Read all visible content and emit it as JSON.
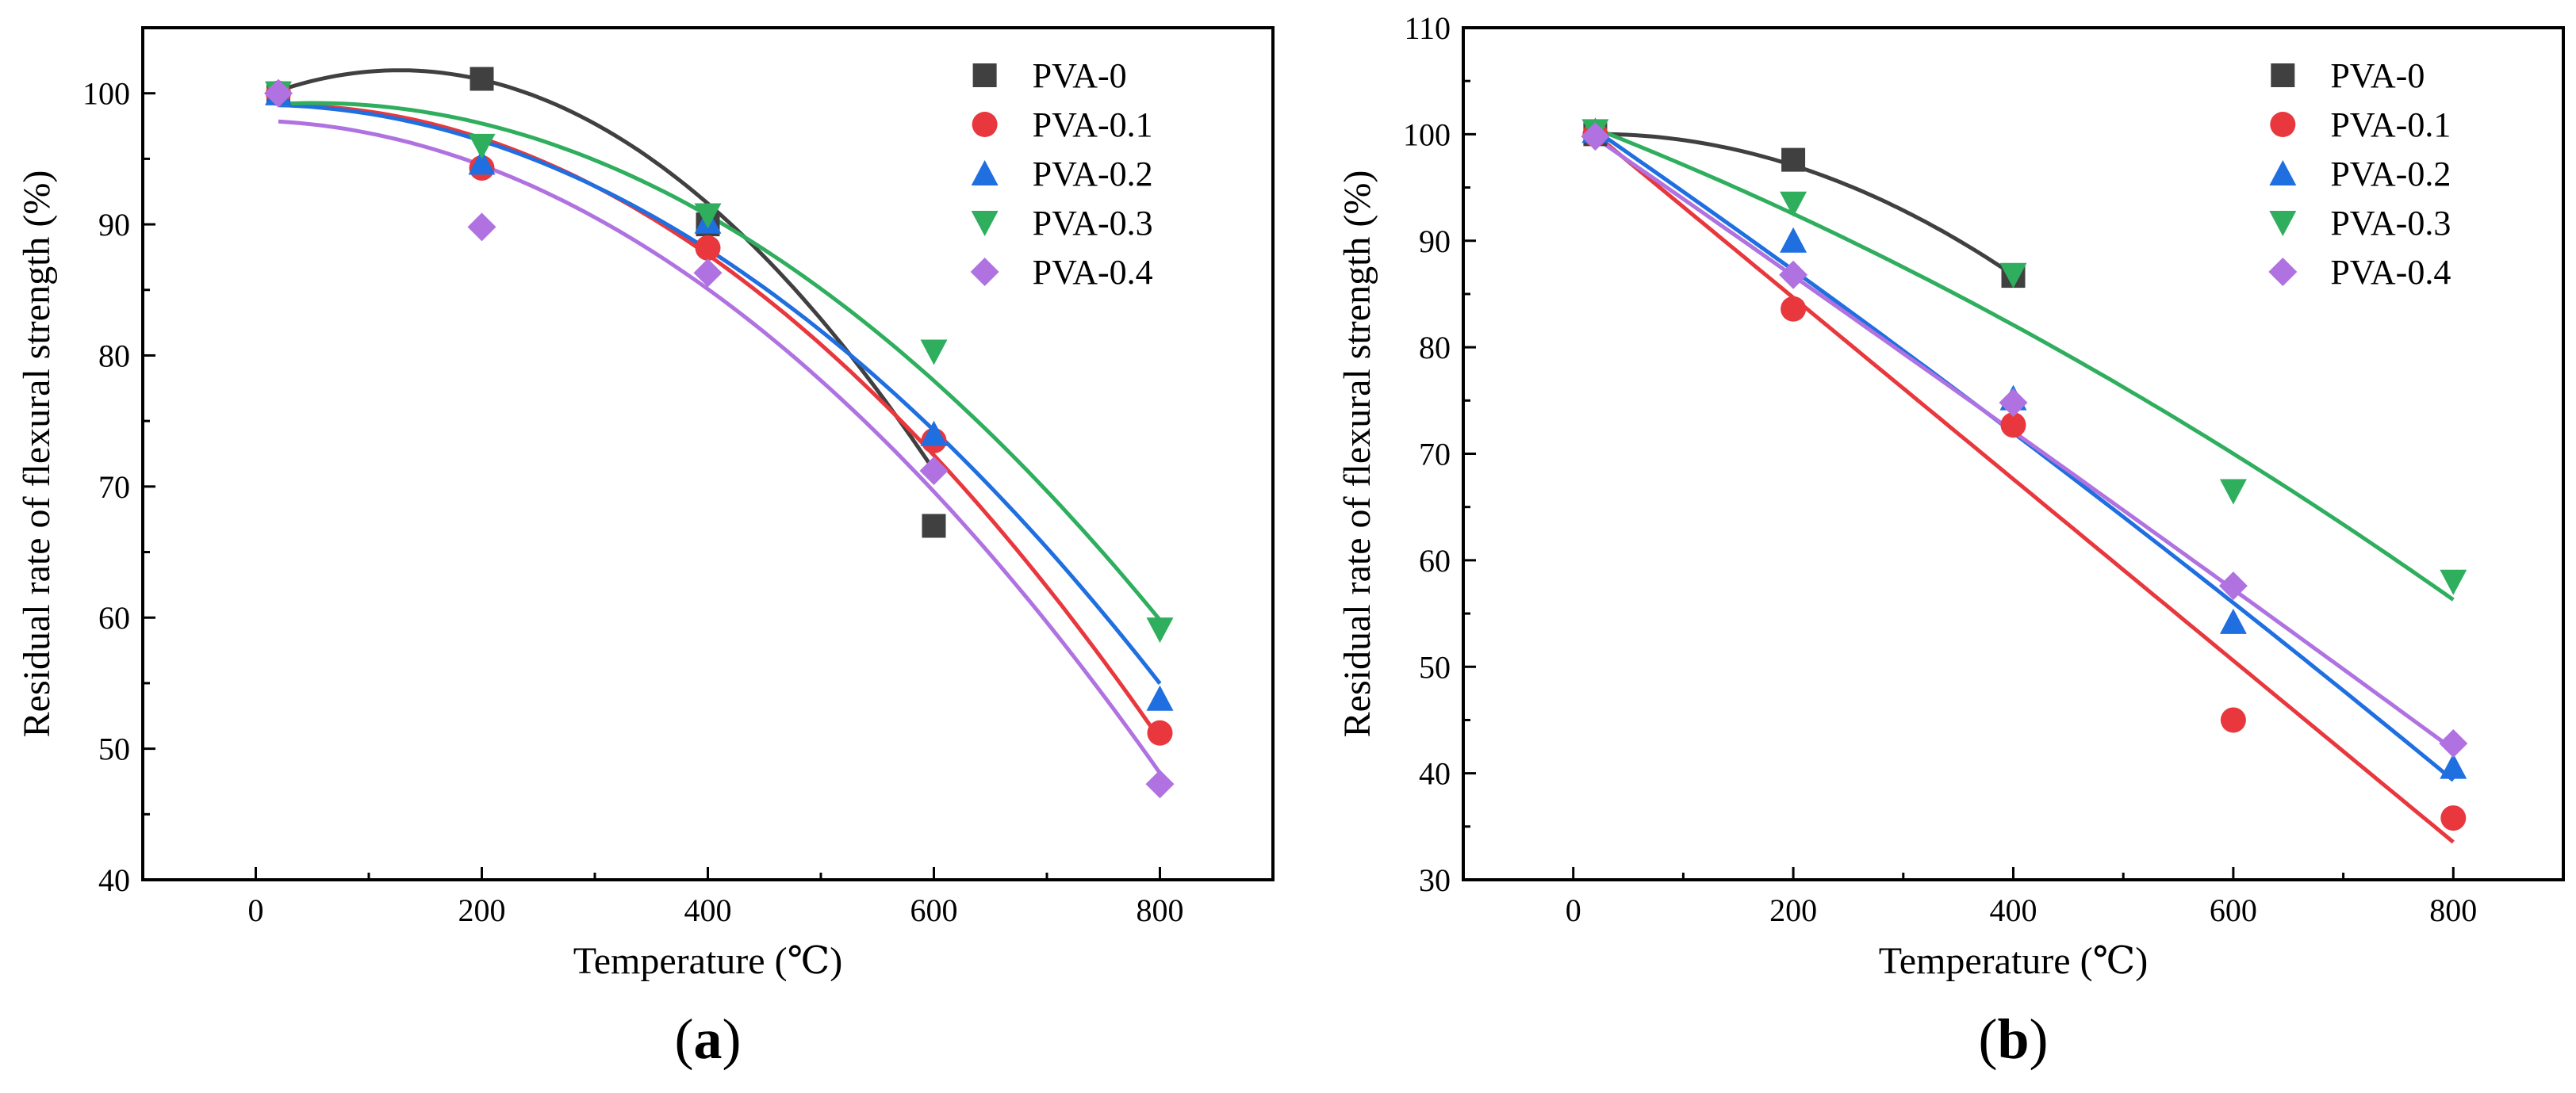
{
  "colors": {
    "PVA-0": "#404040",
    "PVA-0.1": "#e8383d",
    "PVA-0.2": "#1f6fe0",
    "PVA-0.3": "#2fae5e",
    "PVA-0.4": "#b072e0"
  },
  "chart_data": [
    {
      "type": "scatter",
      "panel_label": "a",
      "xlabel": "Temperature (℃)",
      "ylabel": "Residual rate of flexural strength (%)",
      "xlim": [
        -100,
        900
      ],
      "ylim": [
        40,
        105
      ],
      "x_ticks": [
        0,
        200,
        400,
        600,
        800
      ],
      "y_ticks": [
        40,
        50,
        60,
        70,
        80,
        90,
        100
      ],
      "legend_position": "top-right",
      "series": [
        {
          "name": "PVA-0",
          "marker": "square",
          "x": [
            20,
            200,
            400,
            600
          ],
          "y": [
            100,
            101.1,
            90,
            67
          ],
          "fit": [
            99.55,
            0.0347,
            -0.0001365
          ],
          "fit_range": [
            20,
            600
          ]
        },
        {
          "name": "PVA-0.1",
          "marker": "circle",
          "x": [
            20,
            200,
            400,
            600,
            800
          ],
          "y": [
            100,
            94.3,
            88.2,
            73.5,
            51.2
          ],
          "fit": [
            99.05,
            0.00357,
            -8e-05
          ],
          "fit_range": [
            20,
            800
          ]
        },
        {
          "name": "PVA-0.2",
          "marker": "triangle-up",
          "x": [
            20,
            200,
            400,
            600,
            800
          ],
          "y": [
            100,
            94.7,
            90.2,
            74,
            53.8
          ],
          "fit": [
            99.13,
            0.0,
            -6.9e-05
          ],
          "fit_range": [
            20,
            800
          ]
        },
        {
          "name": "PVA-0.3",
          "marker": "triangle-down",
          "x": [
            20,
            200,
            400,
            600,
            800
          ],
          "y": [
            100,
            96,
            90.7,
            80.3,
            59.1
          ],
          "fit": [
            99.07,
            0.00718,
            -7.03e-05
          ],
          "fit_range": [
            20,
            800
          ]
        },
        {
          "name": "PVA-0.4",
          "marker": "diamond",
          "x": [
            20,
            200,
            400,
            600,
            800
          ],
          "y": [
            100,
            89.8,
            86.3,
            71.2,
            47.3
          ],
          "fit": [
            97.92,
            -0.00206,
            -7.52e-05
          ],
          "fit_range": [
            20,
            800
          ]
        }
      ]
    },
    {
      "type": "scatter",
      "panel_label": "b",
      "xlabel": "Temperature (℃)",
      "ylabel": "Residual rate of flexural strength (%)",
      "xlim": [
        -100,
        900
      ],
      "ylim": [
        30,
        110
      ],
      "x_ticks": [
        0,
        200,
        400,
        600,
        800
      ],
      "y_ticks": [
        30,
        40,
        50,
        60,
        70,
        80,
        90,
        100,
        110
      ],
      "legend_position": "top-right",
      "series": [
        {
          "name": "PVA-0",
          "marker": "square",
          "x": [
            20,
            200,
            400
          ],
          "y": [
            100,
            97.6,
            86.7
          ],
          "fit": [
            99.98,
            0.00392,
            -9.23e-05
          ],
          "fit_range": [
            20,
            400
          ]
        },
        {
          "name": "PVA-0.1",
          "marker": "circle",
          "x": [
            20,
            200,
            400,
            600,
            800
          ],
          "y": [
            100,
            83.6,
            72.7,
            45,
            35.8
          ],
          "fit": [
            101.7,
            -0.0852,
            0.0
          ],
          "fit_range": [
            20,
            800
          ]
        },
        {
          "name": "PVA-0.2",
          "marker": "triangle-up",
          "x": [
            20,
            200,
            400,
            600,
            800
          ],
          "y": [
            100.3,
            90,
            75.2,
            54.2,
            40.6
          ],
          "fit": [
            101.8,
            -0.0711,
            -8.71e-06
          ],
          "fit_range": [
            20,
            800
          ]
        },
        {
          "name": "PVA-0.3",
          "marker": "triangle-down",
          "x": [
            20,
            200,
            400,
            600,
            800
          ],
          "y": [
            100.3,
            93.5,
            86.8,
            66.5,
            58
          ],
          "fit": [
            101.33,
            -0.0399,
            -2.05e-05
          ],
          "fit_range": [
            20,
            800
          ]
        },
        {
          "name": "PVA-0.4",
          "marker": "diamond",
          "x": [
            20,
            200,
            400,
            600,
            800
          ],
          "y": [
            99.8,
            86.8,
            74.8,
            57.6,
            42.8
          ],
          "fit": [
            101.1,
            -0.0715,
            -2.6e-06
          ],
          "fit_range": [
            20,
            800
          ]
        }
      ]
    }
  ]
}
